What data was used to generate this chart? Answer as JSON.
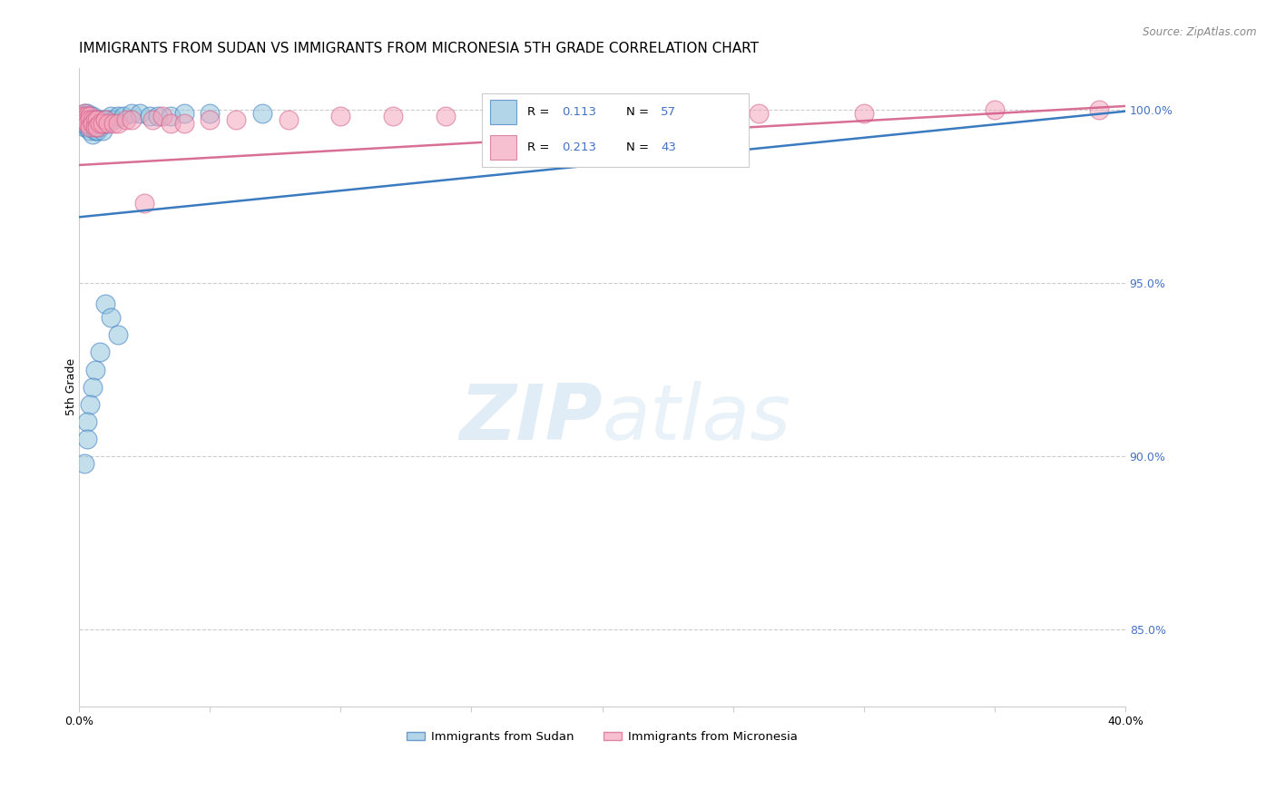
{
  "title": "IMMIGRANTS FROM SUDAN VS IMMIGRANTS FROM MICRONESIA 5TH GRADE CORRELATION CHART",
  "source": "Source: ZipAtlas.com",
  "ylabel": "5th Grade",
  "xlim": [
    0.0,
    0.4
  ],
  "ylim": [
    0.828,
    1.012
  ],
  "xticks": [
    0.0,
    0.05,
    0.1,
    0.15,
    0.2,
    0.25,
    0.3,
    0.35,
    0.4
  ],
  "xticklabels": [
    "0.0%",
    "",
    "",
    "",
    "",
    "",
    "",
    "",
    "40.0%"
  ],
  "yticks_right": [
    0.85,
    0.9,
    0.95,
    1.0
  ],
  "ytick_right_labels": [
    "85.0%",
    "90.0%",
    "95.0%",
    "100.0%"
  ],
  "legend_label1": "Immigrants from Sudan",
  "legend_label2": "Immigrants from Micronesia",
  "color_sudan": "#92c5de",
  "color_micronesia": "#f4a6bd",
  "color_line_sudan": "#3a7abf",
  "color_line_micronesia": "#d45f8a",
  "sudan_x": [
    0.001,
    0.001,
    0.001,
    0.002,
    0.002,
    0.002,
    0.002,
    0.002,
    0.003,
    0.003,
    0.003,
    0.003,
    0.003,
    0.004,
    0.004,
    0.004,
    0.004,
    0.005,
    0.005,
    0.005,
    0.005,
    0.005,
    0.006,
    0.006,
    0.006,
    0.007,
    0.007,
    0.007,
    0.008,
    0.008,
    0.009,
    0.009,
    0.01,
    0.01,
    0.011,
    0.012,
    0.013,
    0.015,
    0.017,
    0.02,
    0.023,
    0.027,
    0.03,
    0.035,
    0.04,
    0.05,
    0.07,
    0.01,
    0.012,
    0.015,
    0.008,
    0.006,
    0.005,
    0.004,
    0.003,
    0.003,
    0.002
  ],
  "sudan_y": [
    0.998,
    0.997,
    0.996,
    0.999,
    0.998,
    0.997,
    0.996,
    0.995,
    0.999,
    0.998,
    0.997,
    0.996,
    0.995,
    0.998,
    0.997,
    0.996,
    0.994,
    0.998,
    0.997,
    0.996,
    0.995,
    0.993,
    0.997,
    0.996,
    0.994,
    0.997,
    0.996,
    0.994,
    0.997,
    0.995,
    0.996,
    0.994,
    0.997,
    0.996,
    0.997,
    0.998,
    0.997,
    0.998,
    0.998,
    0.999,
    0.999,
    0.998,
    0.998,
    0.998,
    0.999,
    0.999,
    0.999,
    0.944,
    0.94,
    0.935,
    0.93,
    0.925,
    0.92,
    0.915,
    0.91,
    0.905,
    0.898
  ],
  "micronesia_x": [
    0.001,
    0.001,
    0.002,
    0.002,
    0.002,
    0.003,
    0.003,
    0.003,
    0.004,
    0.004,
    0.004,
    0.005,
    0.005,
    0.006,
    0.006,
    0.007,
    0.007,
    0.008,
    0.009,
    0.01,
    0.011,
    0.013,
    0.015,
    0.018,
    0.02,
    0.025,
    0.028,
    0.032,
    0.035,
    0.04,
    0.05,
    0.06,
    0.08,
    0.1,
    0.12,
    0.14,
    0.16,
    0.19,
    0.22,
    0.26,
    0.3,
    0.35,
    0.39
  ],
  "micronesia_y": [
    0.998,
    0.997,
    0.999,
    0.998,
    0.997,
    0.998,
    0.997,
    0.996,
    0.998,
    0.997,
    0.995,
    0.997,
    0.996,
    0.997,
    0.995,
    0.997,
    0.995,
    0.996,
    0.996,
    0.997,
    0.996,
    0.996,
    0.996,
    0.997,
    0.997,
    0.973,
    0.997,
    0.998,
    0.996,
    0.996,
    0.997,
    0.997,
    0.997,
    0.998,
    0.998,
    0.998,
    0.999,
    0.999,
    0.999,
    0.999,
    0.999,
    1.0,
    1.0
  ],
  "watermark_zip": "ZIP",
  "watermark_atlas": "atlas",
  "background_color": "#ffffff",
  "grid_color": "#cccccc",
  "title_fontsize": 11,
  "axis_label_fontsize": 9,
  "tick_fontsize": 9,
  "marker_size": 15,
  "trend_sudan_x0": 0.0,
  "trend_sudan_y0": 0.969,
  "trend_sudan_x1": 0.4,
  "trend_sudan_y1": 0.9995,
  "trend_micro_x0": 0.0,
  "trend_micro_y0": 0.984,
  "trend_micro_x1": 0.4,
  "trend_micro_y1": 1.001
}
